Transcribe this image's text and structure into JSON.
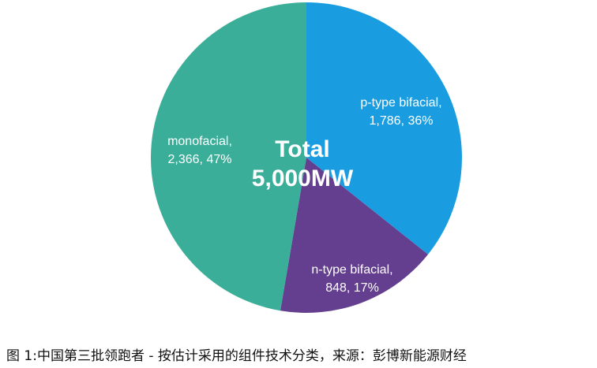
{
  "chart_data": {
    "type": "pie",
    "categories": [
      "p-type bifacial,",
      "n-type bifacial,",
      "monofacial,"
    ],
    "values": [
      1786,
      848,
      2366
    ],
    "value_labels": [
      "1,786, 36%",
      "848, 17%",
      "2,366, 47%"
    ],
    "colors": [
      "#1a9de0",
      "#643f8f",
      "#3aae99"
    ],
    "center_title": "Total",
    "center_value": "5,000MW",
    "caption": "图 1:中国第三批领跑者 - 按估计采用的组件技术分类，来源：彭博新能源财经"
  }
}
